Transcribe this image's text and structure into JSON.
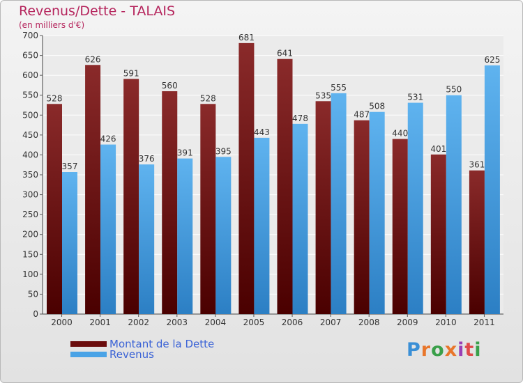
{
  "title": "Revenus/Dette - TALAIS",
  "subtitle": "(en milliers d'€)",
  "logo_text": "Proxiti",
  "legend": [
    {
      "label": "Montant de la Dette",
      "color": "#6b0d0d"
    },
    {
      "label": "Revenus",
      "color": "#4aa3e6"
    }
  ],
  "chart_data": {
    "type": "bar",
    "title": "Revenus/Dette - TALAIS",
    "subtitle": "(en milliers d'€)",
    "xlabel": "",
    "ylabel": "",
    "ylim": [
      0,
      700
    ],
    "yticks": [
      0,
      50,
      100,
      150,
      200,
      250,
      300,
      350,
      400,
      450,
      500,
      550,
      600,
      650,
      700
    ],
    "grid": true,
    "legend_position": "bottom-left",
    "categories": [
      "2000",
      "2001",
      "2002",
      "2003",
      "2004",
      "2005",
      "2006",
      "2007",
      "2008",
      "2009",
      "2010",
      "2011"
    ],
    "series": [
      {
        "name": "Montant de la Dette",
        "color": "#6b0d0d",
        "values": [
          528,
          626,
          591,
          560,
          528,
          681,
          641,
          535,
          487,
          440,
          401,
          361
        ]
      },
      {
        "name": "Revenus",
        "color": "#4aa3e6",
        "values": [
          357,
          426,
          376,
          391,
          395,
          443,
          478,
          555,
          508,
          531,
          550,
          625
        ]
      }
    ]
  }
}
